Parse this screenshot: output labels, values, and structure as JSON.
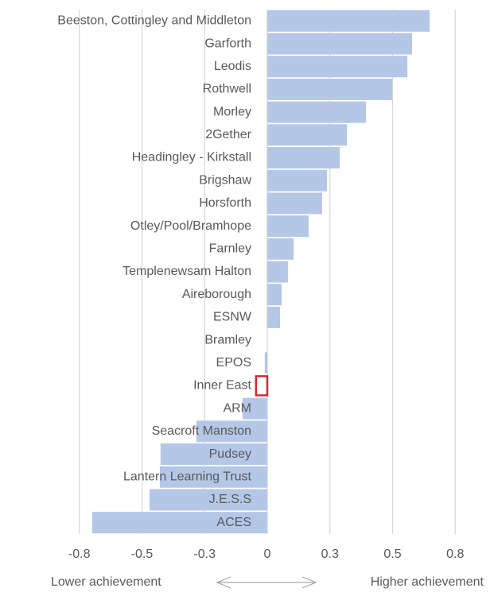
{
  "chart_data": {
    "type": "barh",
    "categories": [
      "Beeston, Cottingley and Middleton",
      "Garforth",
      "Leodis",
      "Rothwell",
      "Morley",
      "2Gether",
      "Headingley - Kirkstall",
      "Brigshaw",
      "Horsforth",
      "Otley/Pool/Bramhope",
      "Farnley",
      "Templenewsam Halton",
      "Aireborough",
      "ESNW",
      "Bramley",
      "EPOS",
      "Inner East",
      "ARM",
      "Seacroft Manston",
      "Pudsey",
      "Lantern Learning Trust",
      "J.E.S.S",
      "ACES"
    ],
    "values": [
      0.648,
      0.578,
      0.559,
      0.499,
      0.394,
      0.318,
      0.289,
      0.238,
      0.219,
      0.165,
      0.105,
      0.083,
      0.057,
      0.051,
      0,
      -0.01,
      -0.045,
      -0.099,
      -0.283,
      -0.426,
      -0.429,
      -0.47,
      -0.699
    ],
    "color": "#b4c7e7",
    "highlight": "Inner East",
    "highlight_color": "#d9262c",
    "xlim": [
      -0.8,
      0.8
    ],
    "xticks": [
      {
        "value": -0.75,
        "label": "-0.8"
      },
      -0.5,
      {
        "value": -0.25,
        "label": "-0.3"
      },
      0,
      {
        "value": 0.25,
        "label": "0.3"
      },
      0.5,
      {
        "value": 0.75,
        "label": "0.8"
      }
    ],
    "grid": true,
    "annotations": [
      "Lower achievement",
      "Higher achievement"
    ]
  }
}
